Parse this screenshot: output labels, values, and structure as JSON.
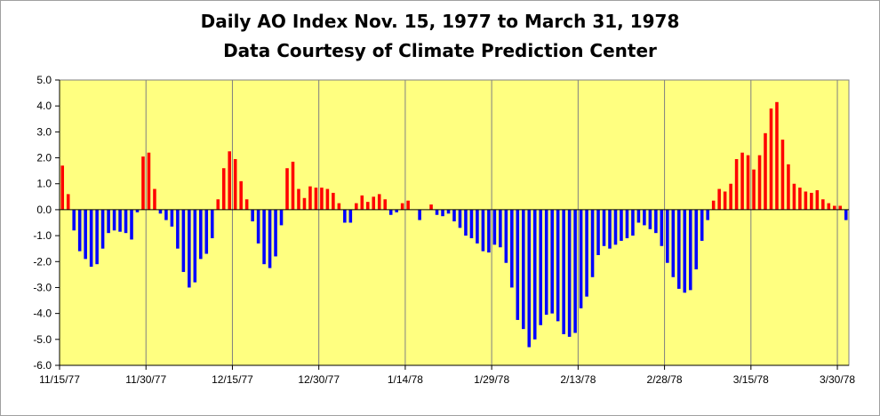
{
  "chart_data": {
    "type": "bar",
    "title": [
      "Daily AO Index Nov. 15, 1977 to March 31, 1978",
      "Data Courtesy of Climate Prediction Center"
    ],
    "xlabel": "",
    "ylabel": "",
    "ylim": [
      -6.0,
      5.0
    ],
    "y_ticks": [
      "5.0",
      "4.0",
      "3.0",
      "2.0",
      "1.0",
      "0.0",
      "-1.0",
      "-2.0",
      "-3.0",
      "-4.0",
      "-5.0",
      "-6.0"
    ],
    "x_tick_labels": [
      {
        "day_index": 0,
        "label": "11/15/77"
      },
      {
        "day_index": 15,
        "label": "11/30/77"
      },
      {
        "day_index": 30,
        "label": "12/15/77"
      },
      {
        "day_index": 45,
        "label": "12/30/77"
      },
      {
        "day_index": 60,
        "label": "1/14/78"
      },
      {
        "day_index": 75,
        "label": "1/29/78"
      },
      {
        "day_index": 90,
        "label": "2/13/78"
      },
      {
        "day_index": 105,
        "label": "2/28/78"
      },
      {
        "day_index": 120,
        "label": "3/15/78"
      },
      {
        "day_index": 135,
        "label": "3/30/78"
      }
    ],
    "grid": {
      "vertical": true,
      "horizontal": false
    },
    "colors": {
      "positive": "#ff0000",
      "negative": "#0000ff",
      "plot_background": "#ffff80",
      "grid": "#808080"
    },
    "values": [
      1.7,
      0.6,
      -0.8,
      -1.6,
      -1.9,
      -2.2,
      -2.1,
      -1.5,
      -0.9,
      -0.8,
      -0.85,
      -0.9,
      -1.15,
      -0.1,
      2.05,
      2.2,
      0.8,
      -0.15,
      -0.4,
      -0.65,
      -1.5,
      -2.4,
      -3.0,
      -2.8,
      -1.9,
      -1.7,
      -1.1,
      0.4,
      1.6,
      2.25,
      1.95,
      1.1,
      0.4,
      -0.45,
      -1.3,
      -2.1,
      -2.25,
      -1.8,
      -0.6,
      1.6,
      1.85,
      0.8,
      0.45,
      0.9,
      0.85,
      0.85,
      0.8,
      0.65,
      0.25,
      -0.5,
      -0.5,
      0.25,
      0.55,
      0.3,
      0.5,
      0.6,
      0.4,
      -0.2,
      -0.1,
      0.25,
      0.35,
      0.0,
      -0.4,
      0.0,
      0.2,
      -0.2,
      -0.25,
      -0.15,
      -0.45,
      -0.7,
      -1.0,
      -1.1,
      -1.3,
      -1.6,
      -1.65,
      -1.35,
      -1.45,
      -2.05,
      -3.0,
      -4.25,
      -4.6,
      -5.3,
      -5.0,
      -4.45,
      -4.05,
      -4.0,
      -4.3,
      -4.8,
      -4.9,
      -4.75,
      -3.8,
      -3.35,
      -2.6,
      -1.75,
      -1.4,
      -1.5,
      -1.35,
      -1.2,
      -1.1,
      -1.0,
      -0.5,
      -0.6,
      -0.75,
      -0.9,
      -1.4,
      -2.05,
      -2.6,
      -3.05,
      -3.2,
      -3.1,
      -2.3,
      -1.2,
      -0.4,
      0.35,
      0.8,
      0.7,
      1.0,
      1.95,
      2.2,
      2.1,
      1.55,
      2.1,
      2.95,
      3.9,
      4.15,
      2.7,
      1.75,
      1.0,
      0.85,
      0.7,
      0.65,
      0.75,
      0.4,
      0.25,
      0.15,
      0.15,
      -0.4
    ]
  }
}
